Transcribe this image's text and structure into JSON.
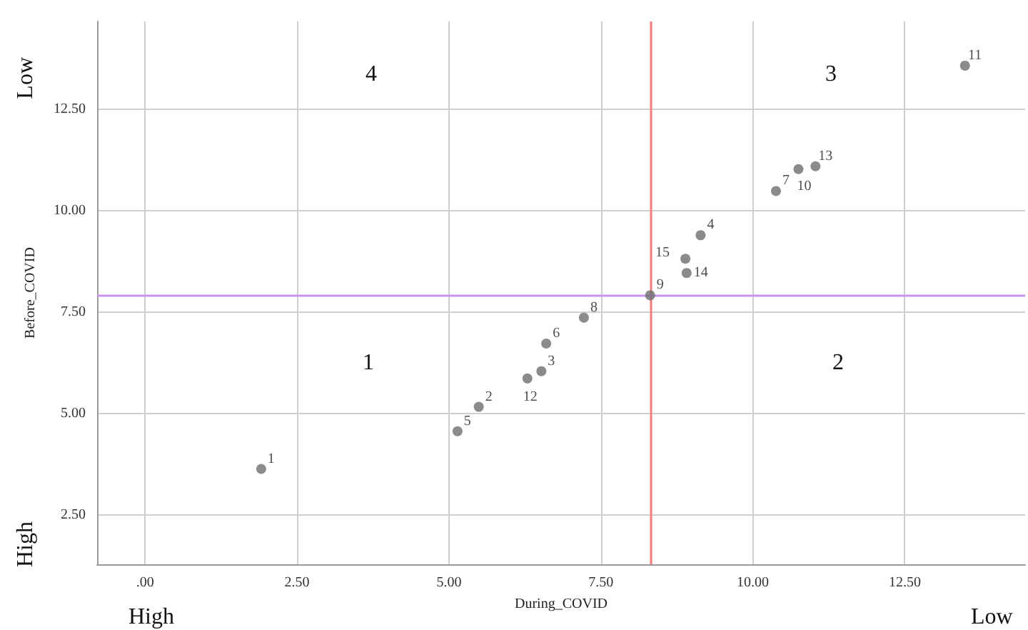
{
  "chart_data": {
    "type": "scatter",
    "xlabel": "During_COVID",
    "ylabel": "Before_COVID",
    "x": [
      1.91,
      5.49,
      6.52,
      9.14,
      5.14,
      6.6,
      10.38,
      7.22,
      8.31,
      10.75,
      13.49,
      6.29,
      11.03,
      8.91,
      8.89
    ],
    "series": [
      {
        "color": "#6e6e6e",
        "values": [
          3.63,
          5.16,
          6.04,
          9.39,
          4.56,
          6.72,
          10.48,
          7.36,
          7.91,
          11.02,
          13.57,
          5.86,
          11.09,
          8.46,
          8.81
        ]
      }
    ],
    "xlim": [
      -0.79,
      14.48
    ],
    "ylim": [
      1.28,
      14.66
    ],
    "xticks": [
      {
        "value": 0,
        "label": ".00"
      },
      {
        "value": 2.5,
        "label": "2.50"
      },
      {
        "value": 5,
        "label": "5.00"
      },
      {
        "value": 7.5,
        "label": "7.50"
      },
      {
        "value": 10,
        "label": "10.00"
      },
      {
        "value": 12.5,
        "label": "12.50"
      }
    ],
    "yticks": [
      {
        "value": 2.5,
        "label": "2.50"
      },
      {
        "value": 5,
        "label": "5.00"
      },
      {
        "value": 7.5,
        "label": "7.50"
      },
      {
        "value": 10,
        "label": "10.00"
      },
      {
        "value": 12.5,
        "label": "12.50"
      }
    ],
    "ref_lines": [
      {
        "axis": "x",
        "value": 8.31,
        "color": "#f07c7c"
      },
      {
        "axis": "y",
        "value": 7.91,
        "color": "#c792f0"
      }
    ],
    "annotations": [
      {
        "text": "1",
        "x": 1.91,
        "y": 3.63
      },
      {
        "text": "2",
        "x": 5.49,
        "y": 5.16
      },
      {
        "text": "3",
        "x": 6.52,
        "y": 6.04
      },
      {
        "text": "4",
        "x": 9.14,
        "y": 9.39
      },
      {
        "text": "5",
        "x": 5.14,
        "y": 4.56
      },
      {
        "text": "6",
        "x": 6.6,
        "y": 6.72
      },
      {
        "text": "7",
        "x": 10.38,
        "y": 10.48
      },
      {
        "text": "8",
        "x": 7.22,
        "y": 7.36
      },
      {
        "text": "9",
        "x": 8.31,
        "y": 7.91
      },
      {
        "text": "10",
        "x": 10.75,
        "y": 11.02
      },
      {
        "text": "11",
        "x": 13.49,
        "y": 13.57
      },
      {
        "text": "12",
        "x": 6.29,
        "y": 5.86
      },
      {
        "text": "13",
        "x": 11.03,
        "y": 11.09
      },
      {
        "text": "14",
        "x": 8.91,
        "y": 8.46
      },
      {
        "text": "15",
        "x": 8.89,
        "y": 8.81
      },
      "4",
      "1",
      "3",
      "2",
      "Low",
      "High",
      "High",
      "Low"
    ],
    "grid": true,
    "marker": "circle"
  }
}
